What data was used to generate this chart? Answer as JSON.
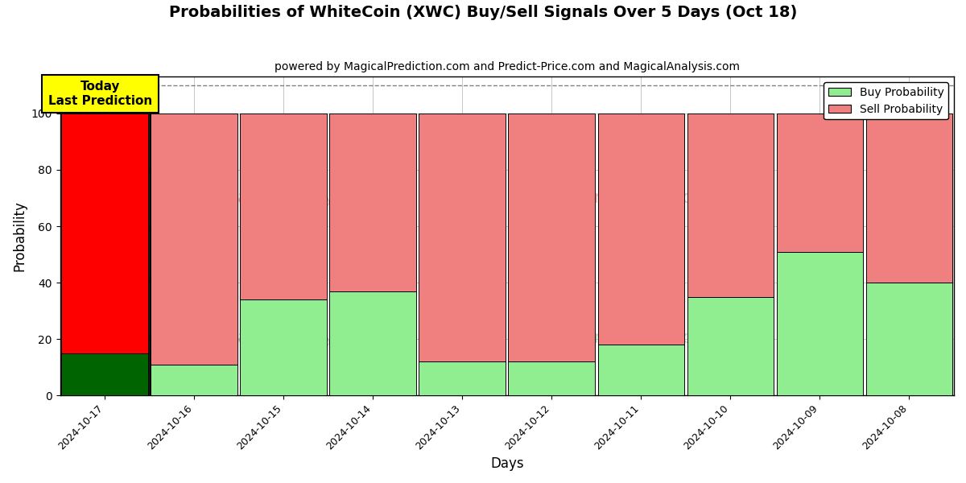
{
  "title": "Probabilities of WhiteCoin (XWC) Buy/Sell Signals Over 5 Days (Oct 18)",
  "subtitle": "powered by MagicalPrediction.com and Predict-Price.com and MagicalAnalysis.com",
  "xlabel": "Days",
  "ylabel": "Probability",
  "dates": [
    "2024-10-17",
    "2024-10-16",
    "2024-10-15",
    "2024-10-14",
    "2024-10-13",
    "2024-10-12",
    "2024-10-11",
    "2024-10-10",
    "2024-10-09",
    "2024-10-08"
  ],
  "buy_values": [
    15,
    11,
    34,
    37,
    12,
    12,
    18,
    35,
    51,
    40
  ],
  "sell_values": [
    85,
    89,
    66,
    63,
    88,
    88,
    82,
    65,
    49,
    60
  ],
  "today_idx": 0,
  "buy_color_today": "#006400",
  "sell_color_today": "#FF0000",
  "buy_color_others": "#90EE90",
  "sell_color_others": "#F08080",
  "today_label_color": "#FFFF00",
  "today_label_text": "Today\nLast Prediction",
  "ylim": [
    0,
    113
  ],
  "yticks": [
    0,
    20,
    40,
    60,
    80,
    100
  ],
  "dashed_line_y": 110,
  "background_color": "#ffffff",
  "grid_color": "#bbbbbb",
  "bar_edge_color": "#000000",
  "bar_width": 0.97,
  "title_fontsize": 14,
  "subtitle_fontsize": 10,
  "axis_label_fontsize": 12,
  "tick_fontsize": 9,
  "legend_fontsize": 10
}
